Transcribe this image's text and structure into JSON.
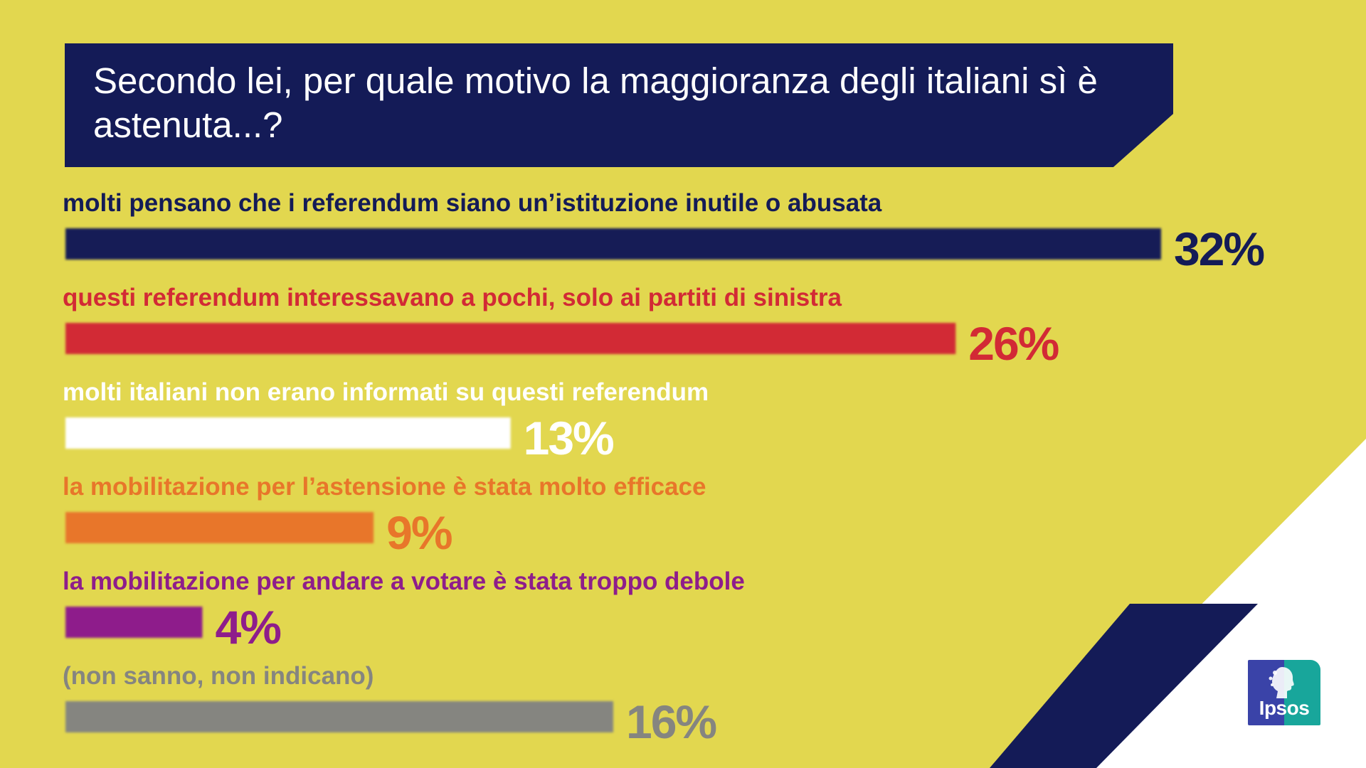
{
  "title": "Secondo lei, per quale motivo la maggioranza degli italiani sì è astenuta...?",
  "colors": {
    "background": "#e2d74f",
    "navy": "#141b57",
    "white": "#ffffff",
    "logo_blue": "#3a43a8",
    "logo_teal": "#18a69b"
  },
  "logo": {
    "text": "Ipsos",
    "icon": "ipsos-profile-icon"
  },
  "chart_data": {
    "type": "bar",
    "orientation": "horizontal",
    "title": "Secondo lei, per quale motivo la maggioranza degli italiani sì è astenuta...?",
    "xlabel": "",
    "ylabel": "",
    "xlim": [
      0,
      32
    ],
    "grid": false,
    "legend": "none",
    "categories": [
      "molti pensano che i referendum siano un’istituzione inutile o abusata",
      "questi referendum interessavano a pochi, solo ai partiti di sinistra",
      "molti italiani non erano informati su questi referendum",
      "la mobilitazione per l’astensione è stata molto efficace",
      "la mobilitazione per andare a votare è stata troppo debole",
      "(non sanno, non indicano)"
    ],
    "values": [
      32,
      26,
      13,
      9,
      4,
      16
    ],
    "value_labels": [
      "32%",
      "26%",
      "13%",
      "9%",
      "4%",
      "16%"
    ],
    "bar_colors": [
      "#141b57",
      "#d22a35",
      "#ffffff",
      "#e8762a",
      "#8e1d8b",
      "#858580"
    ],
    "text_colors": [
      "#141b57",
      "#d22a35",
      "#ffffff",
      "#e8762a",
      "#8e1d8b",
      "#858580"
    ]
  }
}
